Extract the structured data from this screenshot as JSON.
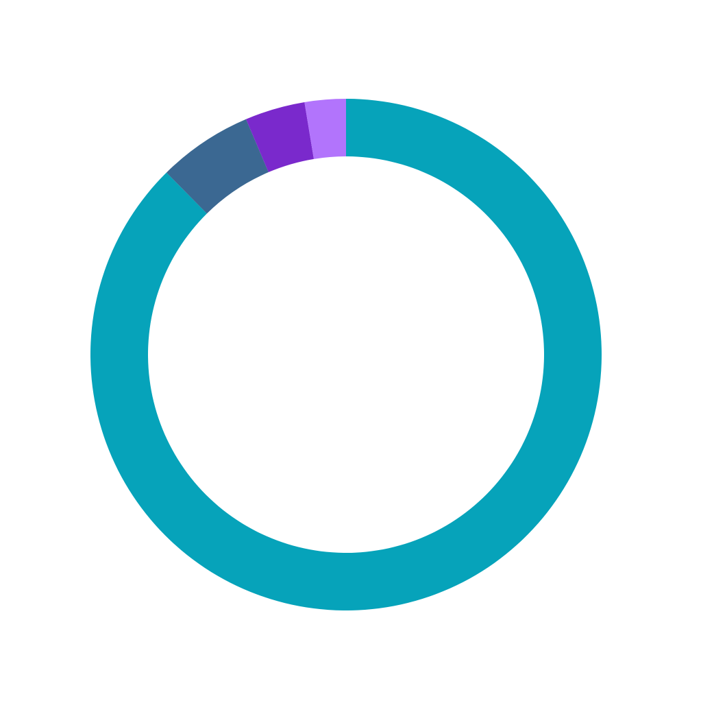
{
  "chart_data": {
    "type": "pie",
    "variant": "donut",
    "start_angle": "top",
    "direction": "clockwise",
    "legend": "none",
    "title": "",
    "slices": [
      {
        "value": 87.6,
        "color": "#06a3ba"
      },
      {
        "value": 6.0,
        "color": "#3b6892"
      },
      {
        "value": 3.8,
        "color": "#7a29cc"
      },
      {
        "value": 2.6,
        "color": "#b274fc"
      }
    ]
  }
}
